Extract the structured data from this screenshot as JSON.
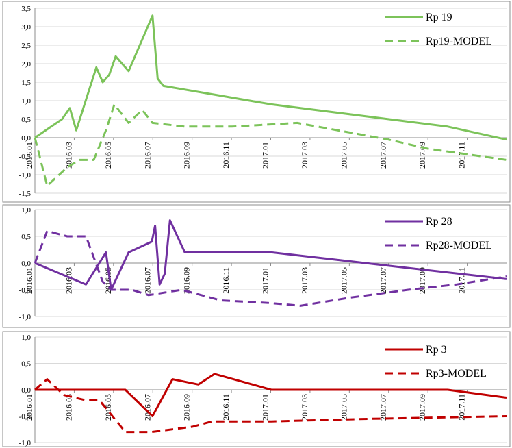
{
  "x_categories": [
    "2016.01",
    "2016.03",
    "2016.05",
    "2016.07",
    "2016.09",
    "2016.11",
    "2017.01",
    "2017.03",
    "2017.05",
    "2017.07",
    "2017.09",
    "2017.11"
  ],
  "chart_data": [
    {
      "type": "line",
      "xlabel": "",
      "ylabel": "",
      "x_range": [
        "2016-01-01",
        "2017-12-31"
      ],
      "ylim": [
        -1.5,
        3.5
      ],
      "ytick_step": 0.5,
      "ytick_labels": [
        "-1,5",
        "-1,0",
        "-0,5",
        "0,0",
        "0,5",
        "1,0",
        "1,5",
        "2,0",
        "2,5",
        "3,0",
        "3,5"
      ],
      "grid": "horizontal",
      "legend_position": "top-right",
      "series": [
        {
          "name": "Rp 19",
          "color": "#7cc35a",
          "dash": "solid",
          "points": [
            [
              "2016-01-01",
              0.0
            ],
            [
              "2016-02-12",
              0.5
            ],
            [
              "2016-02-24",
              0.8
            ],
            [
              "2016-03-05",
              0.2
            ],
            [
              "2016-04-05",
              1.9
            ],
            [
              "2016-04-15",
              1.5
            ],
            [
              "2016-04-25",
              1.7
            ],
            [
              "2016-05-05",
              2.2
            ],
            [
              "2016-05-25",
              1.8
            ],
            [
              "2016-07-01",
              3.3
            ],
            [
              "2016-07-09",
              1.6
            ],
            [
              "2016-07-18",
              1.4
            ],
            [
              "2017-01-01",
              0.9
            ],
            [
              "2017-10-01",
              0.3
            ],
            [
              "2017-12-31",
              -0.05
            ]
          ]
        },
        {
          "name": "Rp19-MODEL",
          "color": "#7cc35a",
          "dash": "dashed",
          "points": [
            [
              "2016-01-01",
              0.0
            ],
            [
              "2016-01-20",
              -1.3
            ],
            [
              "2016-02-20",
              -0.8
            ],
            [
              "2016-03-10",
              -0.6
            ],
            [
              "2016-04-01",
              -0.6
            ],
            [
              "2016-04-20",
              0.2
            ],
            [
              "2016-05-03",
              0.9
            ],
            [
              "2016-05-25",
              0.4
            ],
            [
              "2016-06-15",
              0.75
            ],
            [
              "2016-07-01",
              0.4
            ],
            [
              "2016-08-20",
              0.3
            ],
            [
              "2016-11-01",
              0.3
            ],
            [
              "2017-02-10",
              0.4
            ],
            [
              "2017-07-01",
              -0.05
            ],
            [
              "2017-09-01",
              -0.3
            ],
            [
              "2017-12-31",
              -0.6
            ]
          ]
        }
      ]
    },
    {
      "type": "line",
      "xlabel": "",
      "ylabel": "",
      "x_range": [
        "2016-01-01",
        "2017-12-31"
      ],
      "ylim": [
        -1.0,
        1.0
      ],
      "ytick_step": 0.5,
      "ytick_labels": [
        "-1,0",
        "-0,5",
        "0,0",
        "0,5",
        "1,0"
      ],
      "grid": "horizontal",
      "legend_position": "top-right",
      "series": [
        {
          "name": "Rp 28",
          "color": "#7030a0",
          "dash": "solid",
          "points": [
            [
              "2016-01-01",
              0.0
            ],
            [
              "2016-03-20",
              -0.4
            ],
            [
              "2016-04-20",
              0.2
            ],
            [
              "2016-04-28",
              -0.5
            ],
            [
              "2016-05-25",
              0.2
            ],
            [
              "2016-06-30",
              0.4
            ],
            [
              "2016-07-05",
              0.7
            ],
            [
              "2016-07-12",
              -0.4
            ],
            [
              "2016-07-20",
              -0.2
            ],
            [
              "2016-07-28",
              0.8
            ],
            [
              "2016-08-20",
              0.2
            ],
            [
              "2017-01-01",
              0.2
            ],
            [
              "2017-12-31",
              -0.3
            ]
          ]
        },
        {
          "name": "Rp28-MODEL",
          "color": "#7030a0",
          "dash": "dashed",
          "points": [
            [
              "2016-01-01",
              0.0
            ],
            [
              "2016-01-20",
              0.6
            ],
            [
              "2016-02-20",
              0.5
            ],
            [
              "2016-03-20",
              0.5
            ],
            [
              "2016-04-15",
              -0.35
            ],
            [
              "2016-04-28",
              -0.5
            ],
            [
              "2016-05-30",
              -0.5
            ],
            [
              "2016-06-25",
              -0.6
            ],
            [
              "2016-08-15",
              -0.5
            ],
            [
              "2016-10-15",
              -0.7
            ],
            [
              "2017-01-01",
              -0.75
            ],
            [
              "2017-02-15",
              -0.8
            ],
            [
              "2017-05-01",
              -0.65
            ],
            [
              "2017-08-01",
              -0.5
            ],
            [
              "2017-10-15",
              -0.4
            ],
            [
              "2017-12-31",
              -0.25
            ]
          ]
        }
      ]
    },
    {
      "type": "line",
      "xlabel": "",
      "ylabel": "",
      "x_range": [
        "2016-01-01",
        "2017-12-31"
      ],
      "ylim": [
        -1.0,
        1.0
      ],
      "ytick_step": 0.5,
      "ytick_labels": [
        "-1,0",
        "-0,5",
        "0,0",
        "0,5",
        "1,0"
      ],
      "grid": "horizontal",
      "legend_position": "top-right",
      "series": [
        {
          "name": "Rp 3",
          "color": "#c00000",
          "dash": "solid",
          "points": [
            [
              "2016-01-01",
              0.0
            ],
            [
              "2016-05-20",
              0.0
            ],
            [
              "2016-07-01",
              -0.5
            ],
            [
              "2016-08-01",
              0.2
            ],
            [
              "2016-09-10",
              0.1
            ],
            [
              "2016-10-05",
              0.3
            ],
            [
              "2017-01-01",
              0.0
            ],
            [
              "2017-10-01",
              0.0
            ],
            [
              "2017-12-31",
              -0.15
            ]
          ]
        },
        {
          "name": "Rp3-MODEL",
          "color": "#c00000",
          "dash": "dashed",
          "points": [
            [
              "2016-01-01",
              0.0
            ],
            [
              "2016-01-20",
              0.2
            ],
            [
              "2016-02-15",
              -0.1
            ],
            [
              "2016-03-20",
              -0.2
            ],
            [
              "2016-04-10",
              -0.2
            ],
            [
              "2016-05-20",
              -0.8
            ],
            [
              "2016-06-30",
              -0.8
            ],
            [
              "2016-09-01",
              -0.7
            ],
            [
              "2016-10-01",
              -0.6
            ],
            [
              "2017-01-01",
              -0.6
            ],
            [
              "2017-06-01",
              -0.55
            ],
            [
              "2017-12-31",
              -0.5
            ]
          ]
        }
      ]
    }
  ]
}
